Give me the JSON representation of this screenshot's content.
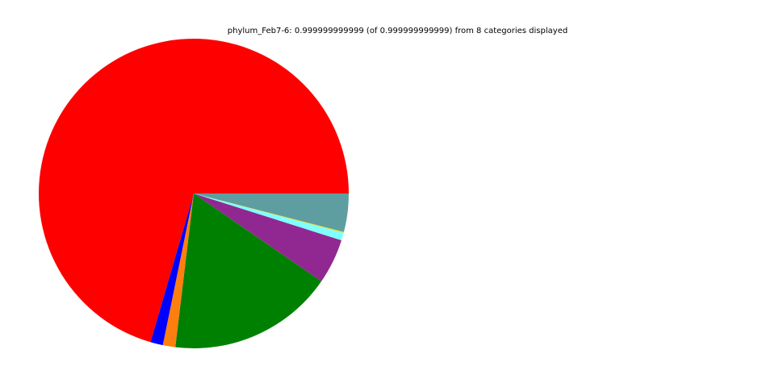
{
  "chart_data": {
    "type": "pie",
    "title": "phylum_Feb7-6: 0.999999999999 (of 0.999999999999) from 8 categories displayed",
    "legend": "none",
    "start_angle_deg": 0,
    "direction": "clockwise",
    "slices": [
      {
        "value": 0.04,
        "color": "#5f9ea0"
      },
      {
        "value": 0.001,
        "color": "#ffd700"
      },
      {
        "value": 0.008,
        "color": "#7fffff"
      },
      {
        "value": 0.047,
        "color": "#912891"
      },
      {
        "value": 0.173,
        "color": "#008000"
      },
      {
        "value": 0.013,
        "color": "#ff7f0e"
      },
      {
        "value": 0.013,
        "color": "#0000ff"
      },
      {
        "value": 0.705,
        "color": "#ff0000"
      }
    ]
  }
}
